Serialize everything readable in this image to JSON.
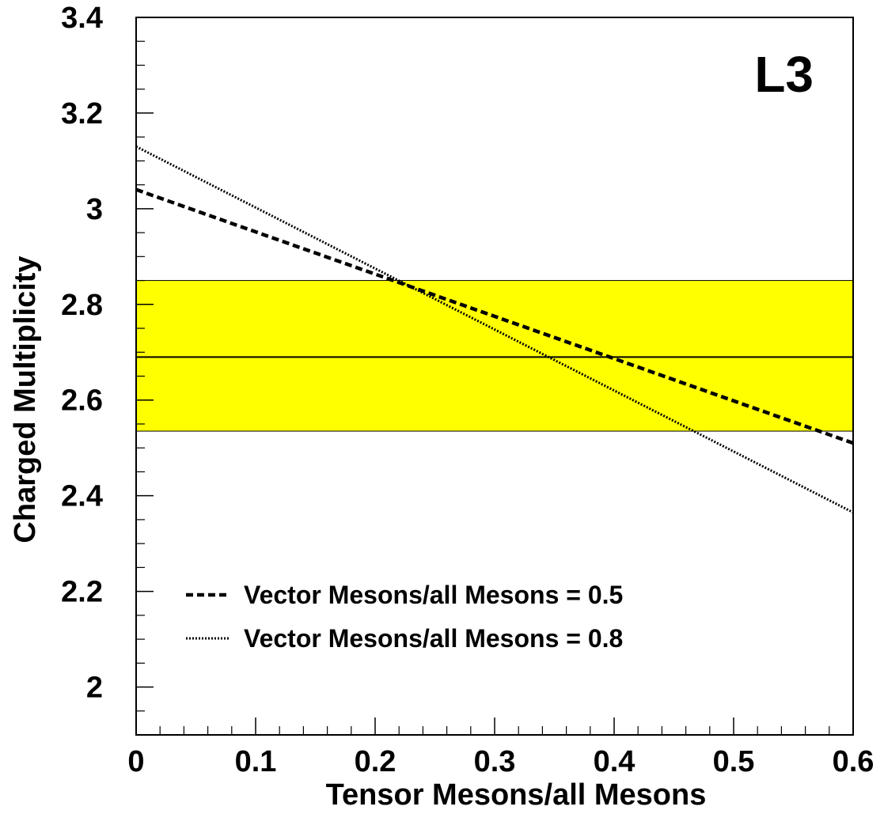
{
  "chart_data": {
    "type": "line",
    "xlabel": "Tensor Mesons/all Mesons",
    "ylabel": "Charged Multiplicity",
    "xlim": [
      0,
      0.6
    ],
    "ylim": [
      1.9,
      3.4
    ],
    "x_ticks": [
      "0",
      "0.1",
      "0.2",
      "0.3",
      "0.4",
      "0.5",
      "0.6"
    ],
    "y_ticks": [
      "2",
      "2.2",
      "2.4",
      "2.6",
      "2.8",
      "3",
      "3.2",
      "3.4"
    ],
    "x_tick_values": [
      0,
      0.1,
      0.2,
      0.3,
      0.4,
      0.5,
      0.6
    ],
    "y_tick_values": [
      2.0,
      2.2,
      2.4,
      2.6,
      2.8,
      3.0,
      3.2,
      3.4
    ],
    "grid": false,
    "annotation": "L3",
    "measurement": {
      "central": 2.69,
      "band_low": 2.535,
      "band_high": 2.85,
      "band_color": "#ffff00",
      "line_color": "#000000"
    },
    "series": [
      {
        "name": "Vector Mesons/all Mesons = 0.5",
        "style": "dashed",
        "color": "#000000",
        "x": [
          0,
          0.6
        ],
        "y": [
          3.04,
          2.51
        ]
      },
      {
        "name": "Vector Mesons/all Mesons = 0.8",
        "style": "dotted",
        "color": "#000000",
        "x": [
          0,
          0.6
        ],
        "y": [
          3.13,
          2.365
        ]
      }
    ],
    "legend_position": "bottom-left"
  }
}
